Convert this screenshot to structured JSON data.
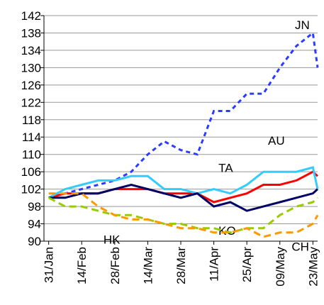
{
  "chart_data": {
    "type": "line",
    "x": [
      "31/Jan",
      "07/Feb",
      "14/Feb",
      "21/Feb",
      "28/Feb",
      "07/Mar",
      "14/Mar",
      "21/Mar",
      "28/Mar",
      "04/Apr",
      "11/Apr",
      "18/Apr",
      "25/Apr",
      "02/May",
      "09/May",
      "16/May",
      "23/May",
      "25/May"
    ],
    "xlim": [
      "29/Jan",
      "25/May"
    ],
    "xticks": [
      "31/Jan",
      "14/Feb",
      "28/Feb",
      "14/Mar",
      "28/Mar",
      "11/Apr",
      "25/Apr",
      "09/May",
      "23/May"
    ],
    "ylim": [
      90,
      142
    ],
    "yticks": [
      90,
      94,
      98,
      102,
      106,
      110,
      114,
      118,
      122,
      126,
      130,
      134,
      138,
      142
    ],
    "grid": true,
    "series": [
      {
        "name": "JN",
        "color": "#2b3bff",
        "style": "dotted",
        "values": [
          100,
          101,
          102,
          103,
          104,
          106,
          110,
          113,
          111,
          110,
          120,
          120,
          124,
          124,
          130,
          135,
          138,
          130
        ]
      },
      {
        "name": "TA",
        "color": "#ff0000",
        "style": "solid",
        "values": [
          100,
          101,
          101,
          101,
          102,
          102,
          102,
          101,
          101,
          101,
          99,
          100,
          101,
          103,
          103,
          104,
          106,
          105
        ]
      },
      {
        "name": "AU",
        "color": "#33ccff",
        "style": "solid",
        "values": [
          100,
          102,
          103,
          104,
          104,
          105,
          105,
          102,
          102,
          101,
          102,
          101,
          103,
          106,
          106,
          106,
          107,
          102
        ]
      },
      {
        "name": "KO",
        "color": "#000066",
        "style": "solid",
        "values": [
          100,
          100,
          101,
          101,
          102,
          103,
          102,
          101,
          100,
          101,
          98,
          99,
          97,
          98,
          99,
          100,
          101,
          102
        ]
      },
      {
        "name": "HK",
        "color": "#99cc00",
        "style": "dashed",
        "values": [
          100,
          98,
          98,
          97,
          96,
          96,
          95,
          94,
          94,
          93,
          93,
          92,
          93,
          93,
          96,
          98,
          99,
          100
        ]
      },
      {
        "name": "CH",
        "color": "#ff9900",
        "style": "dashed",
        "values": [
          101,
          101,
          101,
          98,
          96,
          95,
          95,
          94,
          93,
          93,
          92,
          92,
          93,
          91,
          92,
          92,
          94,
          96
        ]
      }
    ]
  }
}
